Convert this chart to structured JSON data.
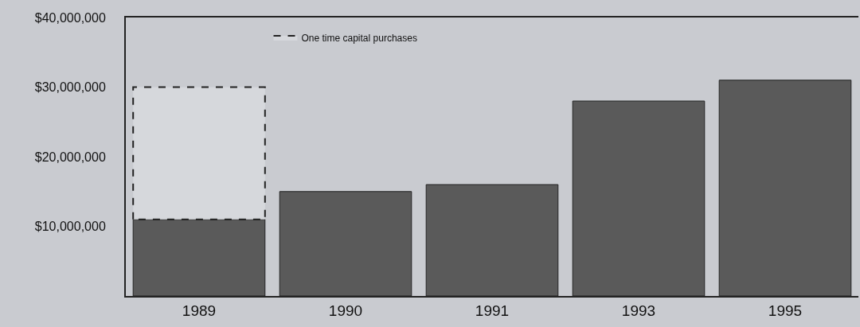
{
  "chart_data": {
    "type": "bar",
    "stacked": true,
    "categories": [
      "1989",
      "1990",
      "1991",
      "1993",
      "1995"
    ],
    "series": [
      {
        "color": "#5a5a5a",
        "values": [
          11000000,
          15000000,
          16000000,
          28000000,
          31000000
        ]
      },
      {
        "name": "One time capital purchases",
        "color": "#222222",
        "line_style": "dashed",
        "values": [
          19000000,
          null,
          null,
          null,
          null
        ]
      }
    ],
    "ylim": [
      0,
      40000000
    ],
    "yticks": [
      {
        "value": 10000000,
        "label": "$10,000,000"
      },
      {
        "value": 20000000,
        "label": "$20,000,000"
      },
      {
        "value": 30000000,
        "label": "$30,000,000"
      },
      {
        "value": 40000000,
        "label": "$40,000,000"
      }
    ],
    "grid": false,
    "legend": "top"
  }
}
